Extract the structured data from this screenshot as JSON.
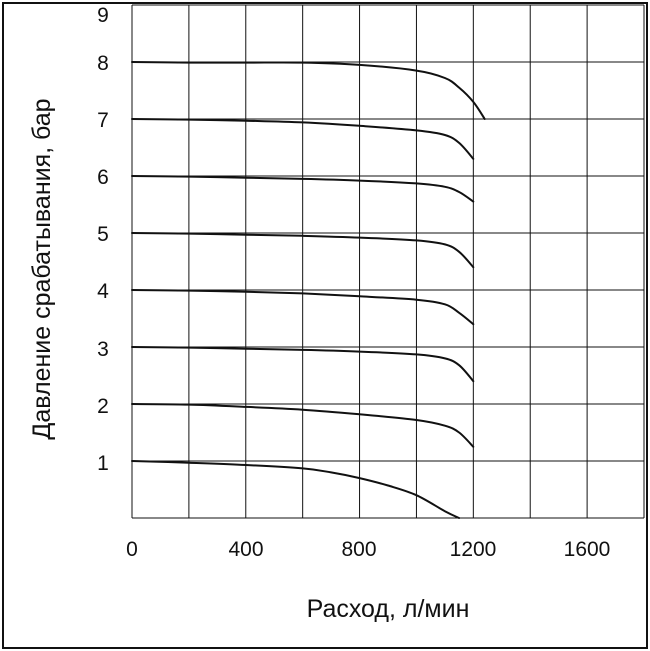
{
  "chart_data": {
    "type": "line",
    "title": "",
    "xlabel": "Расход, л/мин",
    "ylabel": "Давление срабатывания, бар",
    "xlim": [
      0,
      1800
    ],
    "ylim": [
      0,
      9
    ],
    "x_ticks": [
      "0",
      "400",
      "800",
      "1200",
      "1600"
    ],
    "y_ticks": [
      "1",
      "2",
      "3",
      "4",
      "5",
      "6",
      "7",
      "8",
      "9"
    ],
    "grid": true,
    "legend": "none",
    "series": [
      {
        "x": [
          0,
          200,
          400,
          600,
          800,
          1000,
          1100,
          1150,
          1200,
          1240
        ],
        "y": [
          8.0,
          7.99,
          7.99,
          7.99,
          7.95,
          7.85,
          7.72,
          7.55,
          7.3,
          7.0
        ]
      },
      {
        "x": [
          0,
          200,
          400,
          600,
          800,
          1000,
          1100,
          1150,
          1200
        ],
        "y": [
          7.0,
          6.99,
          6.97,
          6.94,
          6.88,
          6.8,
          6.72,
          6.58,
          6.3
        ]
      },
      {
        "x": [
          0,
          200,
          400,
          600,
          800,
          1000,
          1100,
          1150,
          1200
        ],
        "y": [
          6.0,
          5.99,
          5.97,
          5.95,
          5.92,
          5.87,
          5.81,
          5.72,
          5.55
        ]
      },
      {
        "x": [
          0,
          200,
          400,
          600,
          800,
          1000,
          1100,
          1150,
          1200
        ],
        "y": [
          5.0,
          4.99,
          4.97,
          4.95,
          4.92,
          4.87,
          4.8,
          4.67,
          4.4
        ]
      },
      {
        "x": [
          0,
          200,
          400,
          600,
          800,
          1000,
          1100,
          1150,
          1200
        ],
        "y": [
          4.0,
          3.99,
          3.97,
          3.94,
          3.89,
          3.83,
          3.75,
          3.6,
          3.4
        ]
      },
      {
        "x": [
          0,
          200,
          400,
          600,
          800,
          1000,
          1100,
          1150,
          1200
        ],
        "y": [
          3.0,
          2.99,
          2.97,
          2.95,
          2.92,
          2.87,
          2.8,
          2.68,
          2.4
        ]
      },
      {
        "x": [
          0,
          200,
          400,
          600,
          800,
          1000,
          1100,
          1150,
          1200
        ],
        "y": [
          2.0,
          1.99,
          1.95,
          1.9,
          1.82,
          1.72,
          1.62,
          1.5,
          1.25
        ]
      },
      {
        "x": [
          0,
          200,
          400,
          600,
          700,
          800,
          900,
          1000,
          1100,
          1150
        ],
        "y": [
          1.0,
          0.97,
          0.93,
          0.87,
          0.8,
          0.7,
          0.57,
          0.4,
          0.12,
          0.0
        ]
      }
    ]
  }
}
